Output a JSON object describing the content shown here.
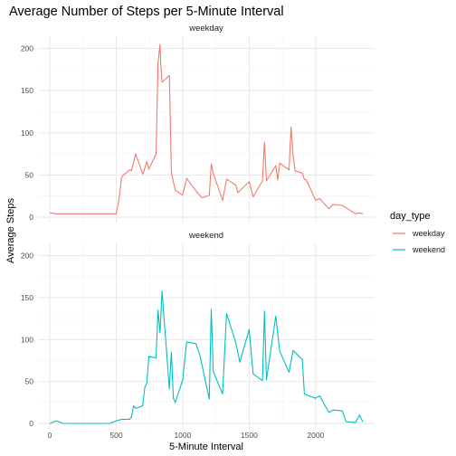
{
  "chart_data": {
    "type": "line",
    "title": "Average Number of Steps per 5-Minute Interval",
    "xlabel": "5-Minute Interval",
    "ylabel": "Average Steps",
    "xlim": [
      0,
      2355
    ],
    "ylim": [
      0,
      206
    ],
    "x_ticks": [
      0,
      500,
      1000,
      1500,
      2000
    ],
    "y_ticks": [
      0,
      50,
      100,
      150,
      200
    ],
    "grid": true,
    "legend": {
      "title": "day_type",
      "position": "right",
      "entries": [
        {
          "name": "weekday",
          "color": "#F8766D"
        },
        {
          "name": "weekend",
          "color": "#00BFC4"
        }
      ]
    },
    "panels": [
      {
        "label": "weekday",
        "color": "#F8766D",
        "x": [
          0,
          50,
          100,
          150,
          200,
          300,
          400,
          450,
          500,
          520,
          540,
          555,
          600,
          615,
          630,
          645,
          700,
          715,
          730,
          745,
          800,
          815,
          830,
          835,
          845,
          900,
          915,
          930,
          945,
          1000,
          1030,
          1100,
          1145,
          1200,
          1215,
          1230,
          1300,
          1330,
          1400,
          1415,
          1500,
          1530,
          1600,
          1615,
          1630,
          1700,
          1715,
          1730,
          1800,
          1815,
          1830,
          1845,
          1900,
          1915,
          1930,
          2000,
          2030,
          2100,
          2130,
          2200,
          2300,
          2330,
          2355
        ],
        "y": [
          5,
          4,
          4,
          4,
          4,
          4,
          4,
          4,
          4,
          20,
          47,
          50,
          56,
          55,
          64,
          75,
          51,
          58,
          66,
          57,
          75,
          183,
          205,
          182,
          160,
          168,
          54,
          42,
          32,
          26,
          46,
          31,
          23,
          26,
          63,
          52,
          20,
          45,
          38,
          29,
          42,
          24,
          43,
          89,
          43,
          61,
          44,
          64,
          56,
          107,
          74,
          55,
          52,
          45,
          44,
          20,
          22,
          10,
          15,
          14,
          4,
          5,
          4
        ]
      },
      {
        "label": "weekend",
        "color": "#00BFC4",
        "x": [
          0,
          50,
          100,
          150,
          200,
          300,
          400,
          450,
          500,
          520,
          545,
          600,
          615,
          630,
          645,
          700,
          715,
          730,
          745,
          800,
          815,
          830,
          845,
          900,
          915,
          930,
          945,
          1000,
          1030,
          1100,
          1130,
          1200,
          1215,
          1230,
          1300,
          1330,
          1400,
          1430,
          1500,
          1530,
          1600,
          1615,
          1630,
          1700,
          1730,
          1800,
          1830,
          1900,
          1915,
          2000,
          2030,
          2100,
          2130,
          2200,
          2230,
          2300,
          2330,
          2355
        ],
        "y": [
          0,
          3,
          0,
          0,
          0,
          0,
          0,
          0,
          3,
          4,
          5,
          5,
          8,
          21,
          18,
          21,
          43,
          48,
          80,
          78,
          135,
          108,
          158,
          41,
          85,
          30,
          25,
          52,
          97,
          95,
          81,
          29,
          136,
          62,
          35,
          131,
          96,
          73,
          112,
          59,
          51,
          134,
          52,
          128,
          86,
          61,
          87,
          76,
          35,
          30,
          33,
          13,
          16,
          15,
          2,
          1,
          10,
          2
        ]
      }
    ]
  }
}
